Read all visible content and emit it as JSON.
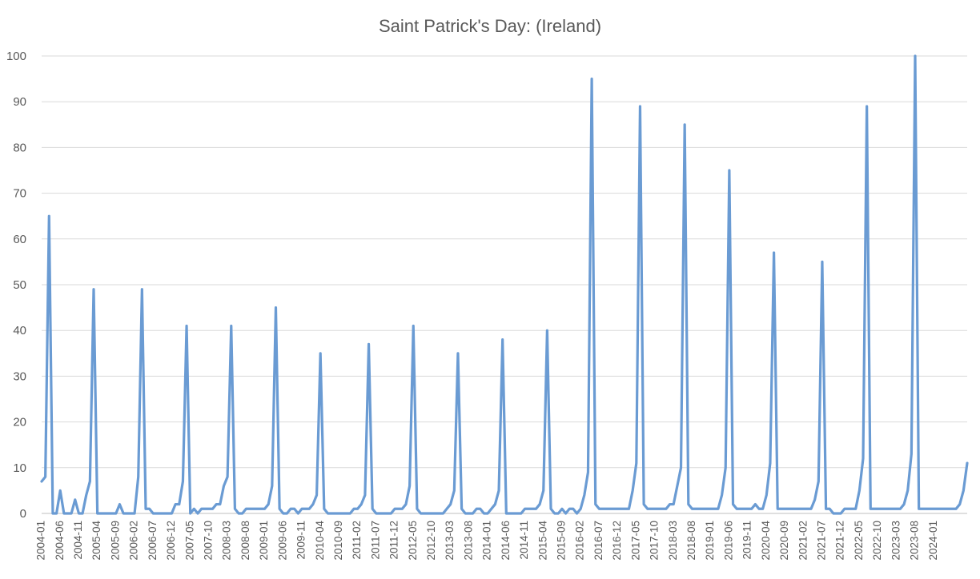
{
  "chart_data": {
    "type": "line",
    "title": "Saint Patrick's Day: (Ireland)",
    "xlabel": "",
    "ylabel": "",
    "ylim": [
      0,
      100
    ],
    "yticks": [
      0,
      10,
      20,
      30,
      40,
      50,
      60,
      70,
      80,
      90,
      100
    ],
    "grid": true,
    "legend": "none",
    "x_start": "2004-01",
    "x_tick_labels": [
      "2004-01",
      "2004-06",
      "2004-11",
      "2005-04",
      "2005-09",
      "2006-02",
      "2006-07",
      "2006-12",
      "2007-05",
      "2007-10",
      "2008-03",
      "2008-08",
      "2009-01",
      "2009-06",
      "2009-11",
      "2010-04",
      "2010-09",
      "2011-02",
      "2011-07",
      "2011-12",
      "2012-05",
      "2012-10",
      "2013-03",
      "2013-08",
      "2014-01",
      "2014-06",
      "2014-11",
      "2015-04",
      "2015-09",
      "2016-02",
      "2016-07",
      "2016-12",
      "2017-05",
      "2017-10",
      "2018-03",
      "2018-08",
      "2019-01",
      "2019-06",
      "2019-11",
      "2020-04",
      "2020-09",
      "2021-02",
      "2021-07",
      "2021-12",
      "2022-05",
      "2022-10",
      "2023-03",
      "2023-08",
      "2024-01"
    ],
    "series": [
      {
        "color": "#6a9bd3",
        "values": [
          7,
          8,
          65,
          0,
          0,
          5,
          0,
          0,
          0,
          3,
          0,
          0,
          4,
          7,
          49,
          0,
          0,
          0,
          0,
          0,
          0,
          2,
          0,
          0,
          0,
          0,
          8,
          49,
          1,
          1,
          0,
          0,
          0,
          0,
          0,
          0,
          2,
          2,
          7,
          41,
          0,
          1,
          0,
          1,
          1,
          1,
          1,
          2,
          2,
          6,
          8,
          41,
          1,
          0,
          0,
          1,
          1,
          1,
          1,
          1,
          1,
          2,
          6,
          45,
          1,
          0,
          0,
          1,
          1,
          0,
          1,
          1,
          1,
          2,
          4,
          35,
          1,
          0,
          0,
          0,
          0,
          0,
          0,
          0,
          1,
          1,
          2,
          4,
          37,
          1,
          0,
          0,
          0,
          0,
          0,
          1,
          1,
          1,
          2,
          6,
          41,
          1,
          0,
          0,
          0,
          0,
          0,
          0,
          0,
          1,
          2,
          5,
          35,
          1,
          0,
          0,
          0,
          1,
          1,
          0,
          0,
          1,
          2,
          5,
          38,
          0,
          0,
          0,
          0,
          0,
          1,
          1,
          1,
          1,
          2,
          5,
          40,
          1,
          0,
          0,
          1,
          0,
          1,
          1,
          0,
          1,
          4,
          9,
          95,
          2,
          1,
          1,
          1,
          1,
          1,
          1,
          1,
          1,
          1,
          5,
          11,
          89,
          2,
          1,
          1,
          1,
          1,
          1,
          1,
          2,
          2,
          6,
          10,
          85,
          2,
          1,
          1,
          1,
          1,
          1,
          1,
          1,
          1,
          4,
          10,
          75,
          2,
          1,
          1,
          1,
          1,
          1,
          2,
          1,
          1,
          4,
          11,
          57,
          1,
          1,
          1,
          1,
          1,
          1,
          1,
          1,
          1,
          1,
          3,
          7,
          55,
          1,
          1,
          0,
          0,
          0,
          1,
          1,
          1,
          1,
          5,
          12,
          89,
          1,
          1,
          1,
          1,
          1,
          1,
          1,
          1,
          1,
          2,
          5,
          13,
          100,
          1,
          1,
          1,
          1,
          1,
          1,
          1,
          1,
          1,
          1,
          1,
          2,
          5,
          11
        ]
      }
    ]
  }
}
